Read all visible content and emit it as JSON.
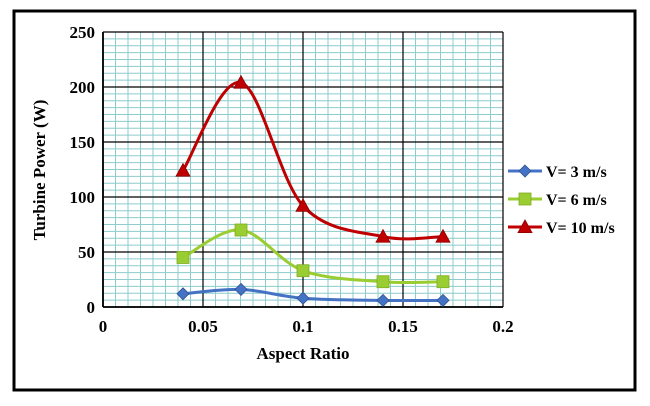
{
  "chart_data": {
    "type": "line",
    "title": "",
    "xlabel": "Aspect Ratio",
    "ylabel": "Turbine Power (W)",
    "xlim": [
      0,
      0.2
    ],
    "ylim": [
      0,
      250
    ],
    "x_ticks": [
      "0",
      "0.05",
      "0.1",
      "0.15",
      "0.2"
    ],
    "y_ticks": [
      "0",
      "50",
      "100",
      "150",
      "200",
      "250"
    ],
    "x_minor_step": 0.00625,
    "y_minor_step": 6.25,
    "grid": true,
    "smooth": true,
    "legend_position": "right",
    "x": [
      0.04,
      0.069,
      0.1,
      0.14,
      0.17
    ],
    "series": [
      {
        "name": "V= 3 m/s",
        "values": [
          12,
          16,
          8,
          6,
          6
        ],
        "color": "#4472C4",
        "marker": "diamond"
      },
      {
        "name": "V= 6 m/s",
        "values": [
          45,
          70,
          33,
          23,
          23
        ],
        "color": "#9ACD32",
        "marker": "square"
      },
      {
        "name": "V= 10 m/s",
        "values": [
          124,
          204,
          92,
          64,
          64
        ],
        "color": "#C00000",
        "marker": "triangle"
      }
    ]
  }
}
